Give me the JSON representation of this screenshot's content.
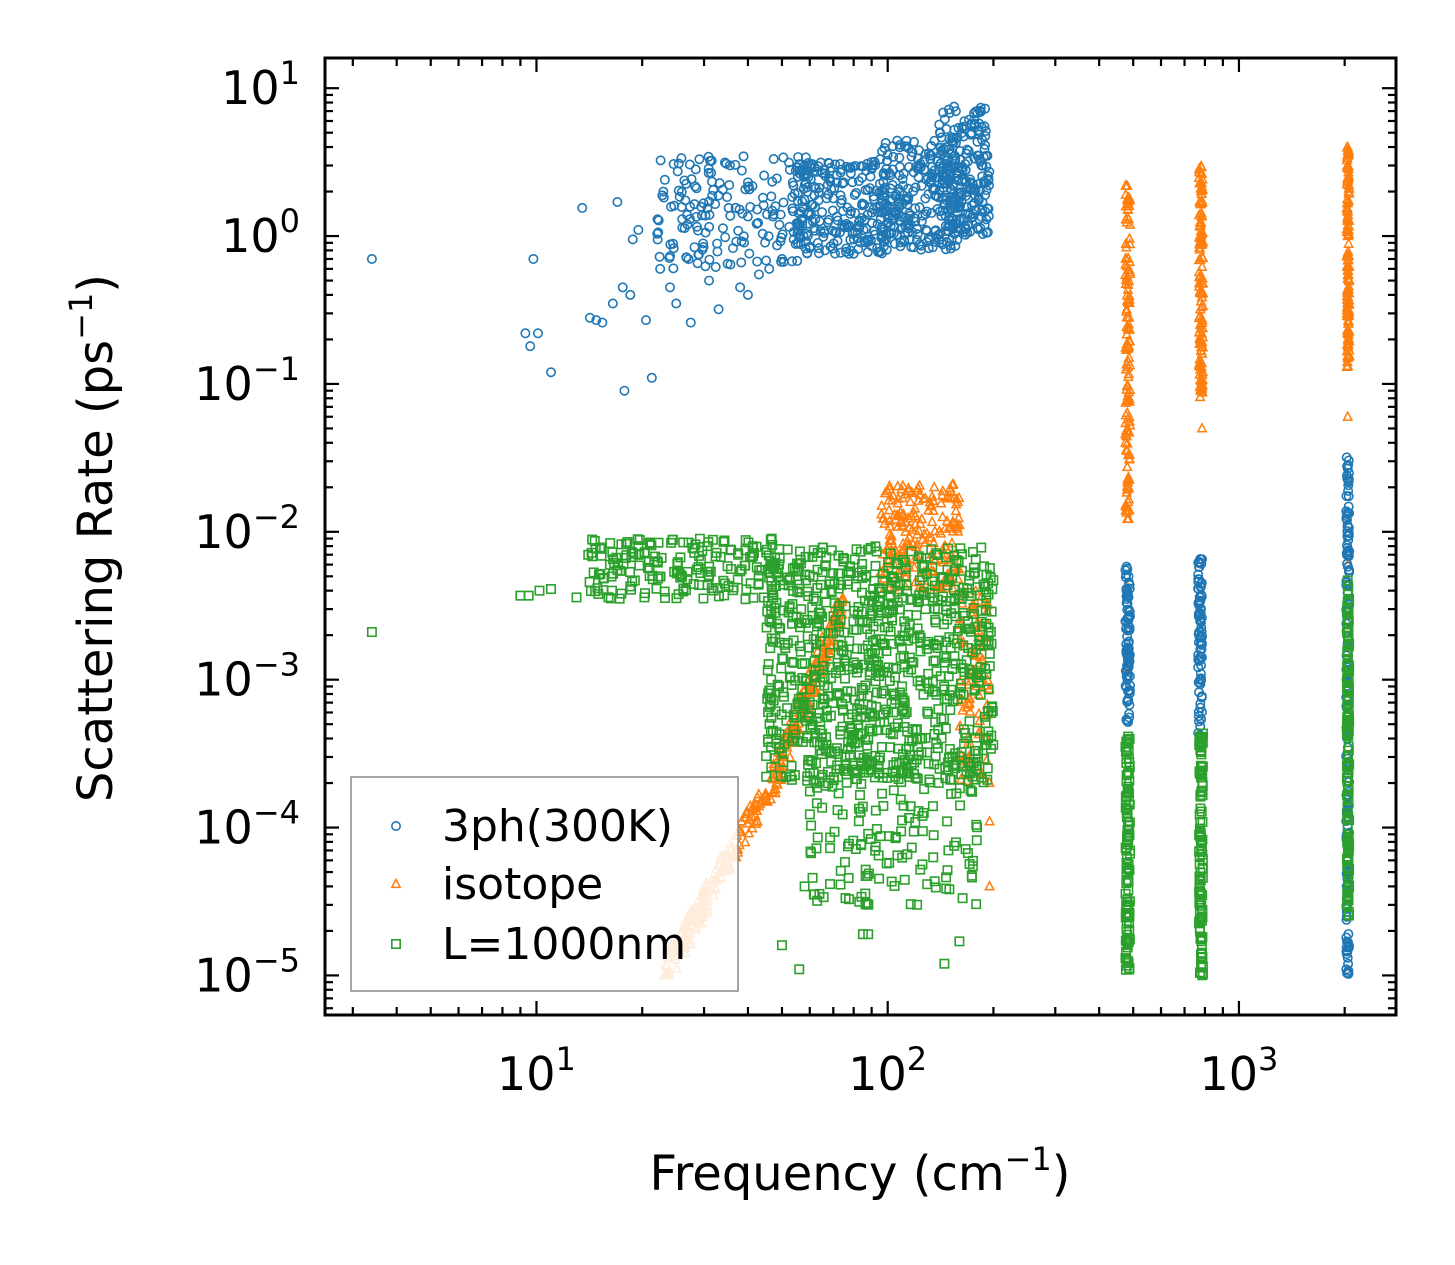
{
  "chart_data": {
    "type": "scatter",
    "xlabel": "Frequency (cm",
    "xlabel_sup": "−1",
    "xlabel_end": ")",
    "ylabel": "Scattering Rate (ps",
    "ylabel_sup": "−1",
    "ylabel_end": ")",
    "xscale": "log",
    "yscale": "log",
    "xlim": [
      2.5,
      2800
    ],
    "ylim": [
      5.4e-06,
      16
    ],
    "xticks": [
      {
        "base": "10",
        "exp": "1",
        "value": 10
      },
      {
        "base": "10",
        "exp": "2",
        "value": 100
      },
      {
        "base": "10",
        "exp": "3",
        "value": 1000
      }
    ],
    "yticks": [
      {
        "base": "10",
        "exp": "−5",
        "value": 1e-05
      },
      {
        "base": "10",
        "exp": "−4",
        "value": 0.0001
      },
      {
        "base": "10",
        "exp": "−3",
        "value": 0.001
      },
      {
        "base": "10",
        "exp": "−2",
        "value": 0.01
      },
      {
        "base": "10",
        "exp": "−1",
        "value": 0.1
      },
      {
        "base": "10",
        "exp": "0",
        "value": 1
      },
      {
        "base": "10",
        "exp": "1",
        "value": 10
      }
    ],
    "legend_position": "lower-left",
    "series": [
      {
        "name": "3ph(300K)",
        "marker": "circle",
        "color": "#1f77b4",
        "points": [
          [
            3.4,
            0.7
          ],
          [
            9.3,
            0.22
          ],
          [
            9.6,
            0.18
          ],
          [
            9.8,
            0.7
          ],
          [
            10.1,
            0.22
          ],
          [
            11.0,
            0.12
          ],
          [
            13.5,
            1.55
          ],
          [
            14.2,
            0.28
          ],
          [
            14.8,
            0.27
          ],
          [
            15.4,
            0.26
          ],
          [
            16.5,
            0.35
          ],
          [
            17.0,
            1.7
          ],
          [
            17.6,
            0.45
          ],
          [
            17.8,
            0.09
          ],
          [
            18.5,
            0.4
          ],
          [
            18.8,
            0.95
          ],
          [
            19.5,
            1.1
          ],
          [
            20.5,
            0.27
          ],
          [
            21.3,
            0.11
          ],
          [
            22.5,
            0.6
          ],
          [
            24.0,
            0.45
          ],
          [
            25.0,
            0.35
          ],
          [
            26.0,
            1.3
          ],
          [
            27.5,
            0.26
          ],
          [
            29.0,
            0.75
          ],
          [
            31.0,
            0.5
          ],
          [
            33.0,
            0.32
          ],
          [
            35.0,
            0.65
          ],
          [
            38.0,
            0.45
          ],
          [
            40.0,
            0.4
          ],
          [
            43.0,
            0.55
          ],
          [
            46.0,
            0.6
          ],
          [
            50.0,
            0.7
          ]
        ],
        "bands": [
          {
            "x": [
              22,
              60
            ],
            "y": [
              0.6,
              3.5
            ],
            "n": 180
          },
          {
            "x": [
              55,
              100
            ],
            "y": [
              0.75,
              3.2
            ],
            "n": 220
          },
          {
            "x": [
              95,
              160
            ],
            "y": [
              0.8,
              4.5
            ],
            "n": 240
          },
          {
            "x": [
              140,
              195
            ],
            "y": [
              1.0,
              7.5
            ],
            "n": 220
          },
          {
            "x": [
              475,
              490
            ],
            "y": [
              0.0005,
              0.0065
            ],
            "n": 90
          },
          {
            "x": [
              765,
              785
            ],
            "y": [
              0.0004,
              0.0068
            ],
            "n": 90
          },
          {
            "x": [
              2020,
              2060
            ],
            "y": [
              1e-05,
              0.032
            ],
            "n": 180
          }
        ]
      },
      {
        "name": "isotope",
        "marker": "triangle",
        "color": "#ff7f0e",
        "points": [
          [
            195,
            0.00011
          ],
          [
            195,
            4e-05
          ],
          [
            480,
            0.0043
          ],
          [
            480,
            0.0012
          ],
          [
            482,
            0.014
          ],
          [
            785,
            0.05
          ],
          [
            785,
            0.1
          ],
          [
            2040,
            0.006
          ],
          [
            2040,
            0.06
          ],
          [
            2040,
            0.15
          ]
        ],
        "bands": [
          {
            "x": [
              23,
              45
            ],
            "y": [
              1e-05,
              0.00017
            ],
            "n": 160,
            "trend": true
          },
          {
            "x": [
              45,
              75
            ],
            "y": [
              0.00015,
              0.0035
            ],
            "n": 160,
            "trend": true
          },
          {
            "x": [
              95,
              160
            ],
            "y": [
              0.004,
              0.021
            ],
            "n": 200
          },
          {
            "x": [
              160,
              195
            ],
            "y": [
              0.0002,
              0.004
            ],
            "n": 90
          },
          {
            "x": [
              475,
              490
            ],
            "y": [
              0.012,
              2.2
            ],
            "n": 130
          },
          {
            "x": [
              770,
              790
            ],
            "y": [
              0.08,
              3.0
            ],
            "n": 130
          },
          {
            "x": [
              2030,
              2060
            ],
            "y": [
              0.13,
              4.0
            ],
            "n": 140
          }
        ]
      },
      {
        "name": "L=1000nm",
        "marker": "square",
        "color": "#2ca02c",
        "points": [
          [
            3.4,
            0.0021
          ],
          [
            9.0,
            0.0037
          ],
          [
            9.5,
            0.0037
          ],
          [
            10.2,
            0.004
          ],
          [
            11.0,
            0.0041
          ],
          [
            13.0,
            0.0036
          ],
          [
            15.0,
            0.0038
          ],
          [
            17.0,
            0.0055
          ],
          [
            18.0,
            0.0083
          ],
          [
            19.5,
            0.008
          ],
          [
            21.0,
            0.0083
          ],
          [
            50.0,
            1.6e-05
          ],
          [
            56.0,
            1.1e-05
          ],
          [
            58.0,
            4e-05
          ],
          [
            85.0,
            1.9e-05
          ],
          [
            88.0,
            1.9e-05
          ],
          [
            145.0,
            1.2e-05
          ],
          [
            160.0,
            1.7e-05
          ]
        ],
        "bands": [
          {
            "x": [
              14,
              48
            ],
            "y": [
              0.0035,
              0.009
            ],
            "n": 180
          },
          {
            "x": [
              45,
              200
            ],
            "y": [
              0.0002,
              0.008
            ],
            "n": 900
          },
          {
            "x": [
              60,
              180
            ],
            "y": [
              3e-05,
              0.0003
            ],
            "n": 160
          },
          {
            "x": [
              475,
              490
            ],
            "y": [
              1e-05,
              0.00045
            ],
            "n": 110
          },
          {
            "x": [
              770,
              790
            ],
            "y": [
              1e-05,
              0.00045
            ],
            "n": 110
          },
          {
            "x": [
              2030,
              2060
            ],
            "y": [
              2.5e-05,
              0.005
            ],
            "n": 150
          }
        ]
      }
    ]
  }
}
